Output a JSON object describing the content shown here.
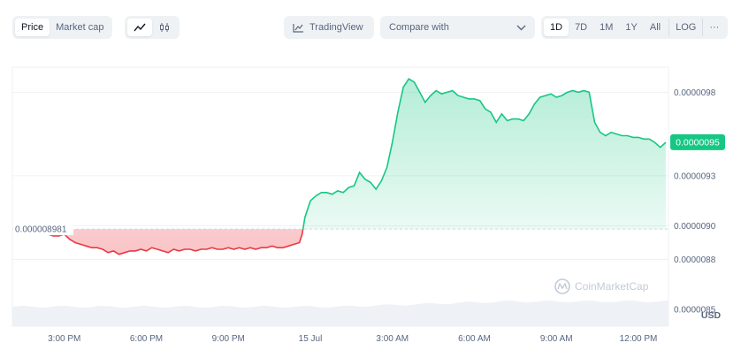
{
  "toolbar": {
    "metric_tabs": [
      "Price",
      "Market cap"
    ],
    "active_metric": 0,
    "chart_style_icons": [
      "line-chart-icon",
      "candlestick-icon"
    ],
    "active_style": 0,
    "tradingview_label": "TradingView",
    "compare_label": "Compare with",
    "ranges": [
      "1D",
      "7D",
      "1M",
      "1Y",
      "All",
      "LOG",
      "···"
    ],
    "active_range": 0
  },
  "colors": {
    "up": "#16c784",
    "down": "#ea3943",
    "baseline": "#cfd6e4",
    "volume": "#eef1f5"
  },
  "chart_data": {
    "type": "line",
    "currency_label": "USD",
    "watermark": "CoinMarketCap",
    "baseline_value": 8.9813e-06,
    "baseline_label": "0.000008981",
    "current_value": 9.501e-06,
    "current_label": "0.0000095",
    "y_ticks": [
      {
        "value": 9.8e-06,
        "label": "0.0000098"
      },
      {
        "value": 9.3e-06,
        "label": "0.0000093"
      },
      {
        "value": 9e-06,
        "label": "0.0000090"
      },
      {
        "value": 8.8e-06,
        "label": "0.0000088"
      },
      {
        "value": 8.5e-06,
        "label": "0.0000085"
      }
    ],
    "x_ticks": [
      {
        "hour": 3,
        "label": "3:00 PM"
      },
      {
        "hour": 6,
        "label": "6:00 PM"
      },
      {
        "hour": 9,
        "label": "9:00 PM"
      },
      {
        "hour": 12,
        "label": "15 Jul"
      },
      {
        "hour": 15,
        "label": "3:00 AM"
      },
      {
        "hour": 18,
        "label": "6:00 AM"
      },
      {
        "hour": 21,
        "label": "9:00 AM"
      },
      {
        "hour": 24,
        "label": "12:00 PM"
      }
    ],
    "xlim": [
      1.1,
      25.1
    ],
    "ylim": [
      8.4e-06,
      9.95e-06
    ],
    "series": [
      {
        "x": [
          2.2,
          2.4,
          2.6,
          2.8,
          3.0,
          3.2,
          3.4,
          3.6,
          3.8,
          4.0,
          4.2,
          4.4,
          4.6,
          4.8,
          5.0,
          5.2,
          5.4,
          5.6,
          5.8,
          6.0,
          6.2,
          6.4,
          6.6,
          6.8,
          7.0,
          7.2,
          7.4,
          7.6,
          7.8,
          8.0,
          8.2,
          8.4,
          8.6,
          8.8,
          9.0,
          9.2,
          9.4,
          9.6,
          9.8,
          10.0,
          10.2,
          10.4,
          10.6,
          10.8,
          11.0,
          11.2,
          11.4,
          11.6,
          11.7,
          11.8,
          12.0,
          12.2,
          12.4,
          12.6,
          12.8,
          13.0,
          13.2,
          13.4,
          13.6,
          13.8,
          14.0,
          14.2,
          14.4,
          14.6,
          14.8,
          15.0,
          15.2,
          15.4,
          15.6,
          15.8,
          16.0,
          16.2,
          16.4,
          16.6,
          16.8,
          17.0,
          17.2,
          17.4,
          17.6,
          17.8,
          18.0,
          18.2,
          18.4,
          18.6,
          18.8,
          19.0,
          19.2,
          19.4,
          19.6,
          19.8,
          20.0,
          20.2,
          20.4,
          20.6,
          20.8,
          21.0,
          21.2,
          21.4,
          21.6,
          21.8,
          22.0,
          22.2,
          22.4,
          22.6,
          22.8,
          23.0,
          23.2,
          23.4,
          23.6,
          23.8,
          24.0,
          24.2,
          24.4,
          24.6,
          24.8,
          25.0
        ],
        "values": [
          8.96e-06,
          8.95e-06,
          8.94e-06,
          8.94e-06,
          8.95e-06,
          8.92e-06,
          8.9e-06,
          8.89e-06,
          8.88e-06,
          8.87e-06,
          8.87e-06,
          8.86e-06,
          8.84e-06,
          8.85e-06,
          8.83e-06,
          8.84e-06,
          8.85e-06,
          8.85e-06,
          8.86e-06,
          8.85e-06,
          8.87e-06,
          8.86e-06,
          8.85e-06,
          8.84e-06,
          8.86e-06,
          8.85e-06,
          8.86e-06,
          8.86e-06,
          8.85e-06,
          8.86e-06,
          8.86e-06,
          8.87e-06,
          8.86e-06,
          8.86e-06,
          8.87e-06,
          8.86e-06,
          8.87e-06,
          8.86e-06,
          8.87e-06,
          8.86e-06,
          8.87e-06,
          8.87e-06,
          8.88e-06,
          8.87e-06,
          8.87e-06,
          8.88e-06,
          8.89e-06,
          8.9e-06,
          8.95e-06,
          9.05e-06,
          9.15e-06,
          9.18e-06,
          9.2e-06,
          9.2e-06,
          9.19e-06,
          9.21e-06,
          9.2e-06,
          9.23e-06,
          9.24e-06,
          9.32e-06,
          9.28e-06,
          9.26e-06,
          9.22e-06,
          9.27e-06,
          9.35e-06,
          9.5e-06,
          9.68e-06,
          9.83e-06,
          9.88e-06,
          9.86e-06,
          9.8e-06,
          9.74e-06,
          9.78e-06,
          9.81e-06,
          9.79e-06,
          9.8e-06,
          9.81e-06,
          9.78e-06,
          9.77e-06,
          9.76e-06,
          9.76e-06,
          9.75e-06,
          9.7e-06,
          9.68e-06,
          9.62e-06,
          9.67e-06,
          9.63e-06,
          9.64e-06,
          9.64e-06,
          9.63e-06,
          9.67e-06,
          9.73e-06,
          9.77e-06,
          9.78e-06,
          9.79e-06,
          9.77e-06,
          9.78e-06,
          9.8e-06,
          9.81e-06,
          9.8e-06,
          9.81e-06,
          9.8e-06,
          9.62e-06,
          9.56e-06,
          9.54e-06,
          9.56e-06,
          9.55e-06,
          9.54e-06,
          9.54e-06,
          9.53e-06,
          9.53e-06,
          9.52e-06,
          9.52e-06,
          9.5e-06,
          9.47e-06,
          9.5e-06
        ]
      }
    ]
  }
}
